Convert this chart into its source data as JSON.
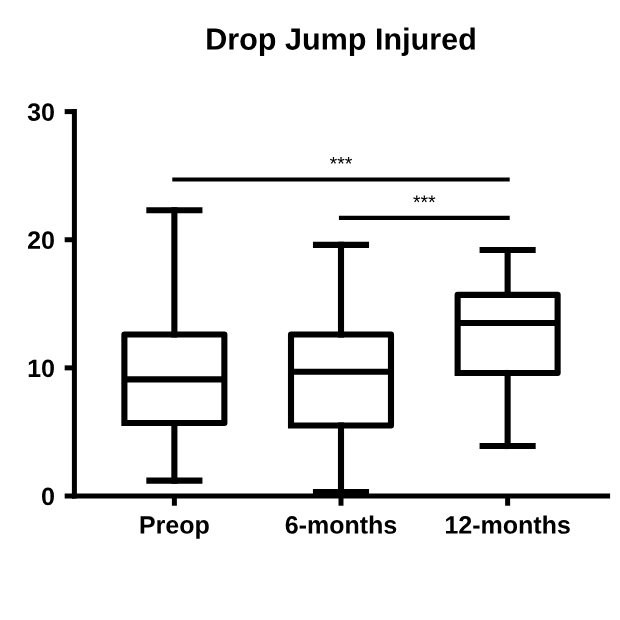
{
  "chart_data": {
    "type": "box",
    "title": "Drop Jump Injured",
    "categories": [
      "Preop",
      "6-months",
      "12-months"
    ],
    "boxes": [
      {
        "low": 1.2,
        "q1": 5.7,
        "median": 9.1,
        "q3": 12.6,
        "high": 22.3
      },
      {
        "low": 0.3,
        "q1": 5.5,
        "median": 9.7,
        "q3": 12.6,
        "high": 19.6
      },
      {
        "low": 3.9,
        "q1": 9.6,
        "median": 13.5,
        "q3": 15.7,
        "high": 19.2
      }
    ],
    "color": "#000000",
    "ylim": [
      0,
      30
    ],
    "yticks": [
      0,
      10,
      20,
      30
    ],
    "grid": false,
    "annotations": [
      "***",
      "***"
    ]
  }
}
